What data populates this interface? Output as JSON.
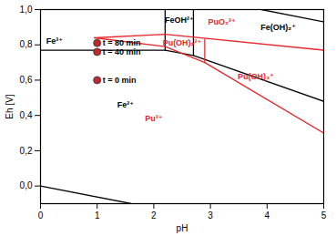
{
  "chart_data": {
    "type": "line",
    "x_label": "pH",
    "y_label": "Eh [V]",
    "xlim": [
      0,
      5
    ],
    "ylim": [
      -0.1,
      1.0
    ],
    "xticks": [
      0,
      1,
      2,
      3,
      4,
      5
    ],
    "yticks": [
      {
        "value": 0,
        "label": "0,0"
      },
      {
        "value": 0.2,
        "label": "0,2"
      },
      {
        "value": 0.4,
        "label": "0,4"
      },
      {
        "value": 0.6,
        "label": "0,6"
      },
      {
        "value": 0.8,
        "label": "0,8"
      },
      {
        "value": 1.0,
        "label": "1,0"
      }
    ],
    "grid": false,
    "series": [
      {
        "color": "#000000",
        "x": [
          0,
          2.2,
          2.7,
          5
        ],
        "values": [
          0.77,
          0.77,
          0.74,
          0.48
        ]
      },
      {
        "color": "#000000",
        "x": [
          2.2,
          2.2
        ],
        "values": [
          0.77,
          1.0
        ]
      },
      {
        "color": "#000000",
        "x": [
          2.7,
          2.7
        ],
        "values": [
          0.74,
          1.0
        ]
      },
      {
        "color": "#000000",
        "x": [
          3.9,
          5
        ],
        "values": [
          1.0,
          0.93
        ]
      },
      {
        "color": "#000000",
        "x": [
          0,
          1.6
        ],
        "values": [
          0.0,
          -0.1
        ]
      },
      {
        "color": "#e8262b",
        "x": [
          0.95,
          2.2,
          5
        ],
        "values": [
          0.84,
          0.86,
          0.77
        ]
      },
      {
        "color": "#e8262b",
        "x": [
          0.95,
          2.2,
          2.9,
          5
        ],
        "values": [
          0.84,
          0.79,
          0.7,
          0.3
        ]
      },
      {
        "color": "#e8262b",
        "x": [
          2.9,
          2.9
        ],
        "values": [
          0.7,
          0.83
        ]
      },
      {
        "type": "scatter",
        "color": "#c0282d",
        "x": [
          1,
          1,
          1
        ],
        "values": [
          0.6,
          0.76,
          0.81
        ],
        "labels": [
          "t = 0 min",
          "t = 40 min",
          "t = 80 min"
        ]
      }
    ],
    "annotations": [
      {
        "text": "Fe³⁺",
        "x": 0.1,
        "y": 0.82,
        "color": "#000000"
      },
      {
        "text": "FeOH²⁺",
        "x": 2.45,
        "y": 0.94,
        "color": "#000000"
      },
      {
        "text": "PuO₂²⁺",
        "x": 3.2,
        "y": 0.93,
        "color": "#e8262b"
      },
      {
        "text": "Fe(OH)₂⁺",
        "x": 4.2,
        "y": 0.9,
        "color": "#000000"
      },
      {
        "text": "Pu(OH)₂²⁺",
        "x": 2.5,
        "y": 0.81,
        "color": "#e8262b"
      },
      {
        "text": "Pu(OH)₃⁺",
        "x": 3.8,
        "y": 0.62,
        "color": "#e8262b"
      },
      {
        "text": "Fe²⁺",
        "x": 1.5,
        "y": 0.46,
        "color": "#000000"
      },
      {
        "text": "Pu³⁺",
        "x": 2.0,
        "y": 0.38,
        "color": "#e8262b"
      }
    ]
  }
}
